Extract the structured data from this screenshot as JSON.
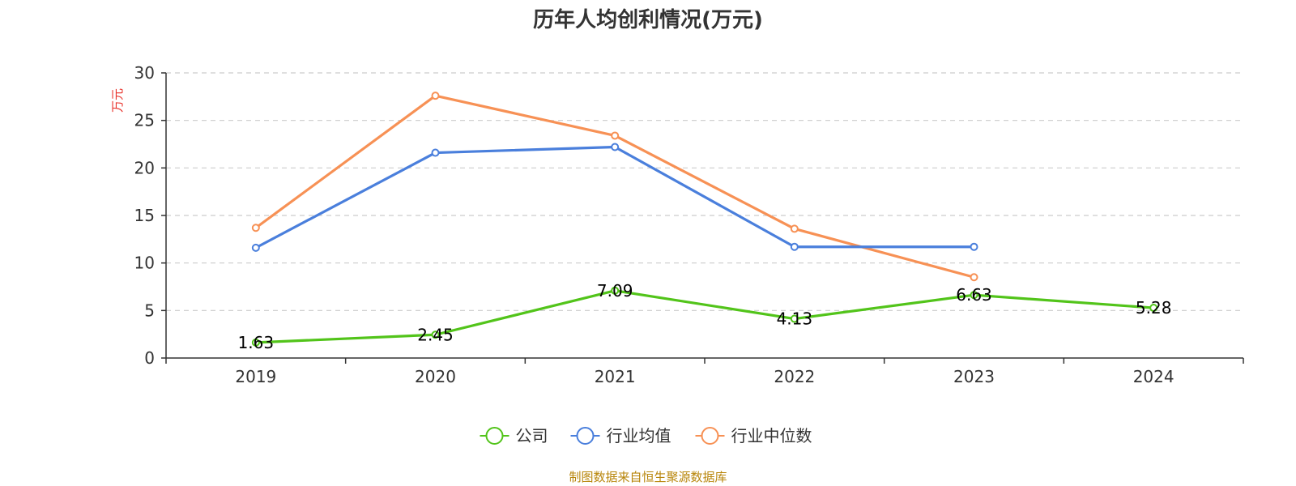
{
  "chart_data": {
    "type": "line",
    "title": "历年人均创利情况(万元)",
    "ylabel": "万元",
    "categories": [
      "2019",
      "2020",
      "2021",
      "2022",
      "2023",
      "2024"
    ],
    "ylim": [
      0,
      30
    ],
    "yticks": [
      0,
      5,
      10,
      15,
      20,
      25,
      30
    ],
    "grid": true,
    "legend_position": "bottom",
    "series": [
      {
        "name": "公司",
        "color": "#52c41a",
        "values": [
          1.63,
          2.45,
          7.09,
          4.13,
          6.63,
          5.28
        ],
        "data_labels": [
          "1.63",
          "2.45",
          "7.09",
          "4.13",
          "6.63",
          "5.28"
        ]
      },
      {
        "name": "行业均值",
        "color": "#4a7fdc",
        "values": [
          11.6,
          21.6,
          22.2,
          11.7,
          11.7,
          null
        ]
      },
      {
        "name": "行业中位数",
        "color": "#f79155",
        "values": [
          13.7,
          27.6,
          23.4,
          13.6,
          8.5,
          null
        ]
      }
    ],
    "source": "制图数据来自恒生聚源数据库"
  }
}
